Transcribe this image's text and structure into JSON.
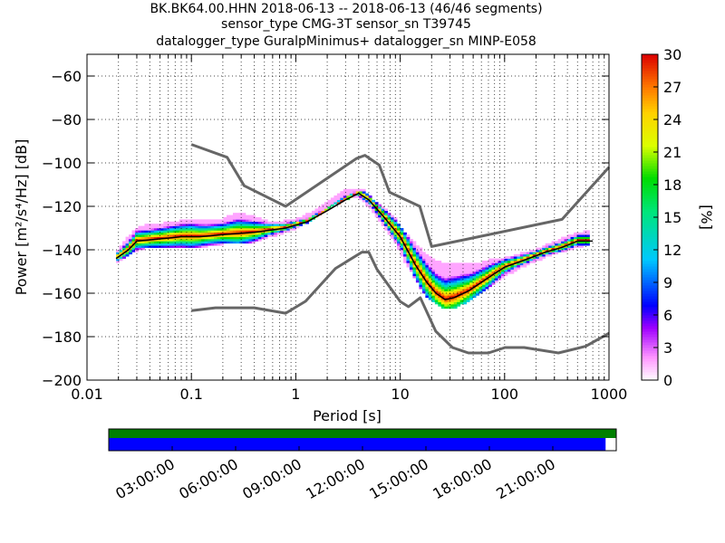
{
  "title": {
    "line1": "BK.BK64.00.HHN   2018-06-13 -- 2018-06-13  (46/46 segments)",
    "line2": "sensor_type CMG-3T sensor_sn T39745",
    "line3": "datalogger_type GuralpMinimus+ datalogger_sn MINP-E058"
  },
  "chart_data": {
    "type": "heatmap",
    "xlabel": "Period [s]",
    "ylabel": "Power [m²/s⁴/Hz] [dB]",
    "x_scale": "log",
    "xlim": [
      0.01,
      1000
    ],
    "ylim": [
      -200,
      -50
    ],
    "x_ticks": [
      {
        "value": 0.01,
        "label": "0.01"
      },
      {
        "value": 0.1,
        "label": "0.1"
      },
      {
        "value": 1,
        "label": "1"
      },
      {
        "value": 10,
        "label": "10"
      },
      {
        "value": 100,
        "label": "100"
      },
      {
        "value": 1000,
        "label": "1000"
      }
    ],
    "y_ticks": [
      {
        "value": -60,
        "label": "−60"
      },
      {
        "value": -80,
        "label": "−80"
      },
      {
        "value": -100,
        "label": "−100"
      },
      {
        "value": -120,
        "label": "−120"
      },
      {
        "value": -140,
        "label": "−140"
      },
      {
        "value": -160,
        "label": "−160"
      },
      {
        "value": -180,
        "label": "−180"
      },
      {
        "value": -200,
        "label": "−200"
      }
    ],
    "grid": true,
    "colorbar": {
      "label": "[%]",
      "min": 0,
      "max": 30,
      "ticks": [
        {
          "value": 0,
          "label": "0"
        },
        {
          "value": 3,
          "label": "3"
        },
        {
          "value": 6,
          "label": "6"
        },
        {
          "value": 9,
          "label": "9"
        },
        {
          "value": 12,
          "label": "12"
        },
        {
          "value": 15,
          "label": "15"
        },
        {
          "value": 18,
          "label": "18"
        },
        {
          "value": 21,
          "label": "21"
        },
        {
          "value": 24,
          "label": "24"
        },
        {
          "value": 27,
          "label": "27"
        },
        {
          "value": 30,
          "label": "30"
        }
      ]
    },
    "median_curve": {
      "period": [
        0.019,
        0.025,
        0.03,
        0.05,
        0.08,
        0.12,
        0.2,
        0.4,
        0.8,
        1.3,
        2,
        3,
        4,
        5,
        7,
        10,
        14,
        18,
        22,
        27,
        33,
        45,
        60,
        80,
        100,
        150,
        250,
        350,
        500,
        700
      ],
      "power": [
        -144,
        -140,
        -136,
        -135,
        -134,
        -134,
        -133,
        -132,
        -130,
        -127,
        -122,
        -117,
        -114,
        -117,
        -125,
        -134,
        -147,
        -155,
        -160,
        -163,
        -162,
        -159,
        -155,
        -151,
        -148,
        -145,
        -141,
        -139,
        -136,
        -136
      ]
    },
    "noise_model_high": {
      "period": [
        0.1,
        0.22,
        0.32,
        0.8,
        3.8,
        4.6,
        6.3,
        7.9,
        15.4,
        20,
        354.8,
        10000
      ],
      "power": [
        -91.5,
        -97.4,
        -110.5,
        -120,
        -98,
        -96.5,
        -101,
        -113.5,
        -120,
        -138.5,
        -126,
        -48.5
      ]
    },
    "noise_model_low": {
      "period": [
        0.1,
        0.17,
        0.4,
        0.8,
        1.24,
        2.4,
        4.3,
        5,
        6,
        10,
        12,
        15.6,
        21.9,
        31.6,
        45,
        70,
        101,
        154,
        328,
        600,
        10000
      ],
      "power": [
        -168,
        -166.7,
        -166.7,
        -169.2,
        -163.7,
        -148.6,
        -141.1,
        -141.1,
        -149,
        -163.8,
        -166.2,
        -162.1,
        -177.5,
        -185,
        -187.5,
        -187.5,
        -185,
        -185,
        -187.5,
        -184.4,
        -151.5
      ]
    },
    "pdf_bands": [
      {
        "period": [
          0.019,
          0.023,
          0.03,
          0.04,
          0.055,
          0.075,
          0.1,
          0.14,
          0.2,
          0.28,
          0.4,
          0.55,
          0.75,
          1,
          1.4,
          2,
          2.8,
          3.7,
          4.5,
          5.5,
          7,
          9,
          11,
          14,
          17,
          21,
          25,
          30,
          38,
          50,
          70,
          100,
          140,
          200,
          280,
          400,
          550,
          650
        ],
        "low": [
          -146,
          -143,
          -140,
          -138,
          -139,
          -139,
          -139,
          -138,
          -137,
          -137,
          -136,
          -134,
          -132,
          -130,
          -126,
          -121,
          -117,
          -115,
          -118,
          -122,
          -129,
          -137,
          -145,
          -153,
          -160,
          -164,
          -166,
          -167,
          -165,
          -162,
          -157,
          -152,
          -148,
          -145,
          -142,
          -140,
          -138,
          -137
        ],
        "high": [
          -142,
          -137,
          -131,
          -129,
          -129,
          -128,
          -127,
          -128,
          -127,
          -124,
          -126,
          -128,
          -128,
          -127,
          -124,
          -119,
          -114,
          -113,
          -114,
          -118,
          -122,
          -127,
          -133,
          -138,
          -143,
          -146,
          -147,
          -147,
          -147,
          -148,
          -146,
          -145,
          -143,
          -141,
          -138,
          -135,
          -133,
          -132
        ]
      }
    ]
  },
  "timeline": {
    "labels": [
      "03:00:00",
      "06:00:00",
      "09:00:00",
      "12:00:00",
      "15:00:00",
      "18:00:00",
      "21:00:00"
    ],
    "top_bar_color": "#008000",
    "bottom_bar_color": "#0000ff",
    "top_coverage_fraction": 1.0,
    "bottom_coverage_fraction": 0.979
  }
}
